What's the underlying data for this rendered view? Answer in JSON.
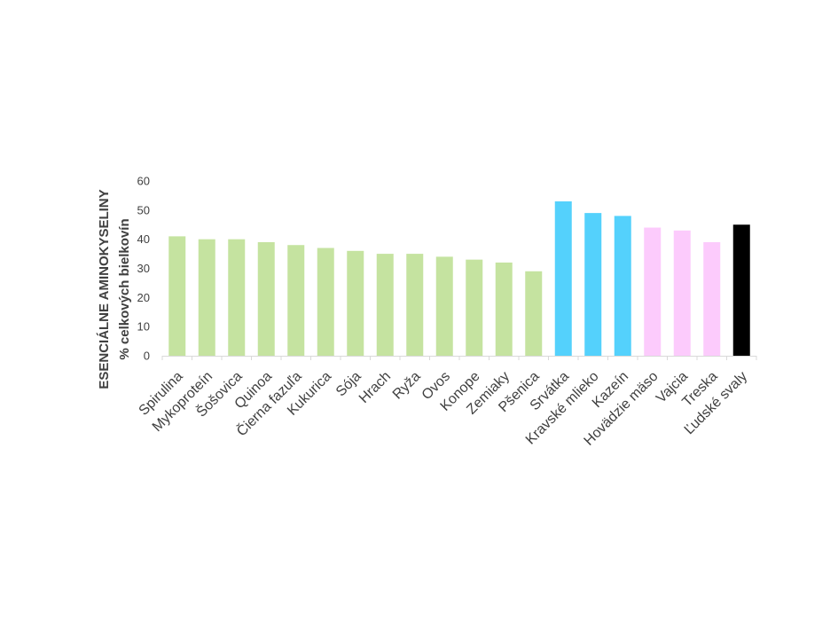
{
  "chart_data": {
    "type": "bar",
    "ylabel_line1": "ESENCIÁLNE AMINOKYSELINY",
    "ylabel_line2": "% celkových bielkovín",
    "ylim": [
      0,
      60
    ],
    "yticks": [
      0,
      10,
      20,
      30,
      40,
      50,
      60
    ],
    "grid": false,
    "categories": [
      "Spirulina",
      "Mykoproteín",
      "Šošovica",
      "Quinoa",
      "Čierna fazuľa",
      "Kukurica",
      "Sója",
      "Hrach",
      "Ryža",
      "Ovos",
      "Konope",
      "Zemiaky",
      "Pšenica",
      "Srvátka",
      "Kravské mlieko",
      "Kazeín",
      "Hovädzie mäso",
      "Vajcia",
      "Treska",
      "Ľudské svaly"
    ],
    "values": [
      41,
      40,
      40,
      39,
      38,
      37,
      36,
      35,
      35,
      34,
      33,
      32,
      29,
      53,
      49,
      48,
      44,
      43,
      39,
      45
    ],
    "colors": [
      "#c5e3a0",
      "#c5e3a0",
      "#c5e3a0",
      "#c5e3a0",
      "#c5e3a0",
      "#c5e3a0",
      "#c5e3a0",
      "#c5e3a0",
      "#c5e3a0",
      "#c5e3a0",
      "#c5e3a0",
      "#c5e3a0",
      "#c5e3a0",
      "#54d1fc",
      "#54d1fc",
      "#54d1fc",
      "#fccbfc",
      "#fccbfc",
      "#fccbfc",
      "#000000"
    ]
  }
}
